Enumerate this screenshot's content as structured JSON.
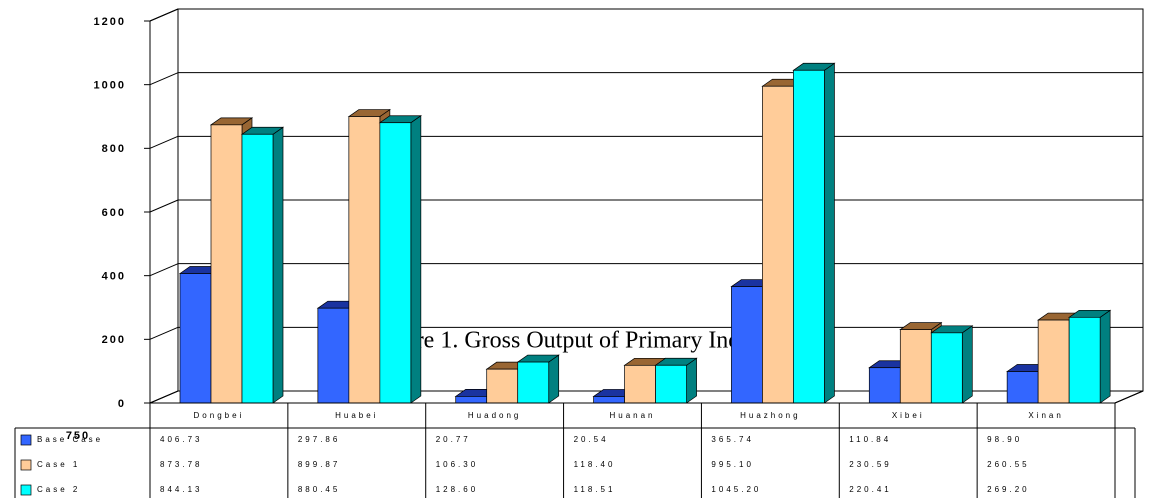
{
  "chart_data": [
    {
      "type": "bar3d",
      "title": "Figure 1. Gross Output of Primary Industry",
      "categories": [
        "Dongbei",
        "Huabei",
        "Huadong",
        "Huanan",
        "Huazhong",
        "Xibei",
        "Xinan"
      ],
      "series": [
        {
          "name": "Base Case",
          "color": "#3366ff",
          "side": "#1a33a0",
          "values": [
            406.73,
            297.86,
            20.77,
            20.54,
            365.74,
            110.84,
            98.9
          ],
          "value_labels": [
            "406.73",
            "297.86",
            "20.77",
            "20.54",
            "365.74",
            "110.84",
            "98.90"
          ]
        },
        {
          "name": "Case 1",
          "color": "#ffcc99",
          "side": "#996633",
          "values": [
            873.78,
            899.87,
            106.3,
            118.4,
            995.1,
            230.59,
            260.55
          ],
          "value_labels": [
            "873.78",
            "899.87",
            "106.30",
            "118.40",
            "995.10",
            "230.59",
            "260.55"
          ]
        },
        {
          "name": "Case 2",
          "color": "#00ffff",
          "side": "#008080",
          "values": [
            844.13,
            880.45,
            128.6,
            118.51,
            1045.2,
            220.41,
            269.2
          ],
          "value_labels": [
            "844.13",
            "880.45",
            "128.60",
            "118.51",
            "1045.20",
            "220.41",
            "269.20"
          ]
        }
      ],
      "ylim": [
        0,
        1200
      ],
      "yticks": [
        0,
        200,
        400,
        600,
        800,
        1000,
        1200
      ],
      "grid": true
    },
    {
      "type": "fragment",
      "yticks": [
        750
      ]
    }
  ]
}
